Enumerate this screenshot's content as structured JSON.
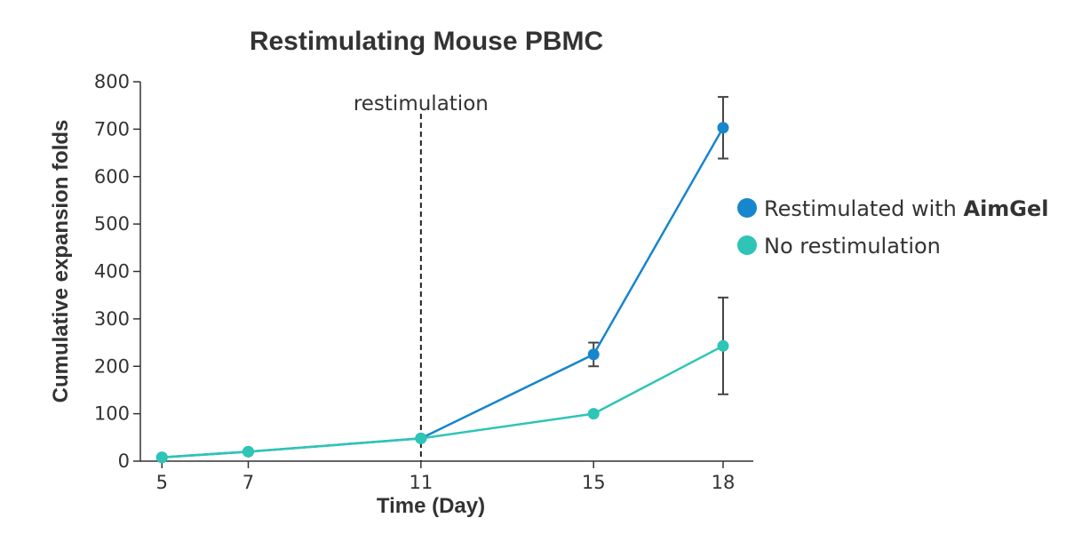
{
  "chart_data": {
    "type": "line",
    "title": "Restimulating Mouse PBMC",
    "xlabel": "Time (Day)",
    "ylabel": "Cumulative expansion folds",
    "x": [
      5,
      7,
      11,
      15,
      18
    ],
    "x_ticks": [
      5,
      7,
      11,
      15,
      18
    ],
    "xlim": [
      4.5,
      18.7
    ],
    "ylim": [
      0,
      800
    ],
    "y_ticks": [
      0,
      100,
      200,
      300,
      400,
      500,
      600,
      700,
      800
    ],
    "grid": false,
    "legend_position": "right",
    "annotations": [
      {
        "type": "vertical-dashed-line",
        "x": 11,
        "text": "restimulation"
      }
    ],
    "series": [
      {
        "name": "Restimulated with AimGel",
        "name_prefix": "Restimulated with ",
        "name_bold": "AimGel",
        "color": "#1786cc",
        "values": [
          8,
          20,
          48,
          225,
          703
        ],
        "error": [
          null,
          null,
          null,
          25,
          65
        ]
      },
      {
        "name": "No restimulation",
        "name_prefix": "No restimulation",
        "name_bold": "",
        "color": "#2ec4b6",
        "values": [
          8,
          20,
          48,
          100,
          243
        ],
        "error": [
          null,
          null,
          null,
          null,
          102
        ]
      }
    ]
  }
}
